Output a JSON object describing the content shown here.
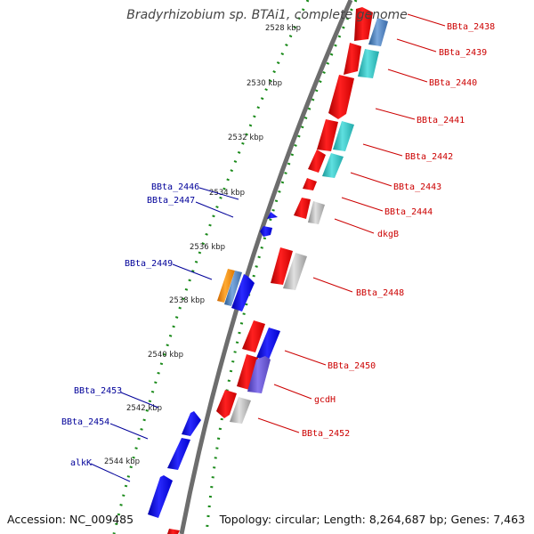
{
  "title": "Bradyrhizobium sp. BTAi1, complete genome",
  "accession": "Accession: NC_009485",
  "topology": "Topology: circular; Length: 8,264,687 bp; Genes: 7,463",
  "colors": {
    "forward_label": "#cc0000",
    "reverse_label": "#000099",
    "backbone": "#777777",
    "tick": "#1a8a1a",
    "red": "#ee1111",
    "blue": "#1111ee",
    "cyan": "#33cccc",
    "steelblue": "#4a7fc0",
    "gray": "#b5b5b5",
    "purple": "#6655cc",
    "orange": "#ff8800"
  },
  "kbp_ticks": [
    "2528 kbp",
    "2530 kbp",
    "2532 kbp",
    "2534 kbp",
    "2536 kbp",
    "2538 kbp",
    "2540 kbp",
    "2542 kbp",
    "2544 kbp"
  ],
  "forward_labels": [
    "BBta_2438",
    "BBta_2439",
    "BBta_2440",
    "BBta_2441",
    "BBta_2442",
    "BBta_2443",
    "BBta_2444",
    "dkgB",
    "BBta_2448",
    "BBta_2450",
    "gcdH",
    "BBta_2452"
  ],
  "reverse_labels": [
    "BBta_2446",
    "BBta_2447",
    "BBta_2449",
    "BBta_2453",
    "BBta_2454",
    "alkK"
  ]
}
